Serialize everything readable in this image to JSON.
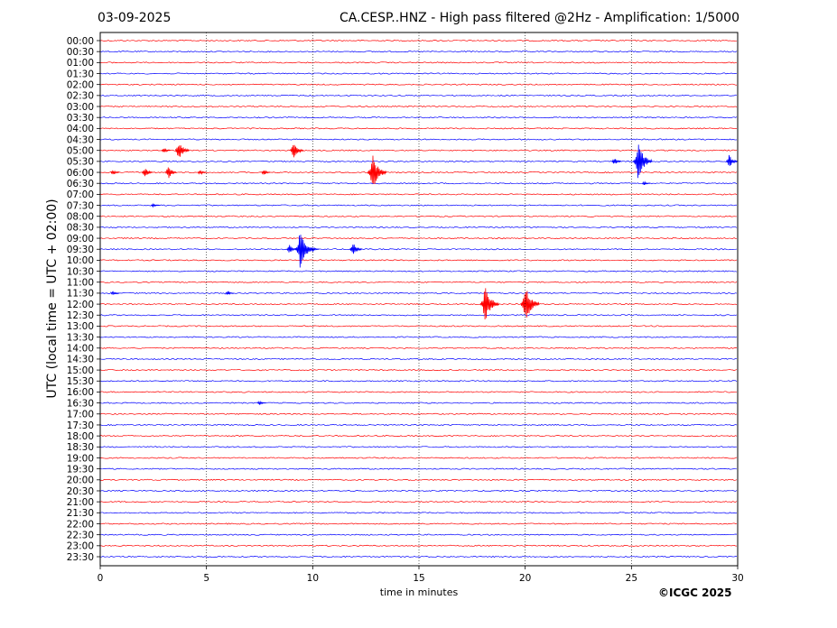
{
  "header": {
    "date": "03-09-2025",
    "title": "CA.CESP..HNZ - High pass filtered @2Hz - Amplification: 1/5000"
  },
  "footer": {
    "credit": "©ICGC 2025"
  },
  "chart_data": {
    "type": "line",
    "ylabel": "UTC (local time = UTC + 02:00)",
    "xlabel": "time in minutes",
    "xlim": [
      0,
      30
    ],
    "x_ticks": [
      0,
      5,
      10,
      15,
      20,
      25,
      30
    ],
    "x_gridlines": [
      5,
      10,
      15,
      20,
      25
    ],
    "trace_colors": [
      "#ff0000",
      "#0000ff"
    ],
    "rows": [
      "00:00",
      "00:30",
      "01:00",
      "01:30",
      "02:00",
      "02:30",
      "03:00",
      "03:30",
      "04:00",
      "04:30",
      "05:00",
      "05:30",
      "06:00",
      "06:30",
      "07:00",
      "07:30",
      "08:00",
      "08:30",
      "09:00",
      "09:30",
      "10:00",
      "10:30",
      "11:00",
      "11:30",
      "12:00",
      "12:30",
      "13:00",
      "13:30",
      "14:00",
      "14:30",
      "15:00",
      "15:30",
      "16:00",
      "16:30",
      "17:00",
      "17:30",
      "18:00",
      "18:30",
      "19:00",
      "19:30",
      "20:00",
      "20:30",
      "21:00",
      "21:30",
      "22:00",
      "22:30",
      "23:00",
      "23:30"
    ],
    "events": [
      {
        "row": "05:00",
        "minute": 3.0,
        "amplitude": 0.15
      },
      {
        "row": "05:00",
        "minute": 3.7,
        "amplitude": 0.55
      },
      {
        "row": "05:00",
        "minute": 9.1,
        "amplitude": 0.5
      },
      {
        "row": "05:30",
        "minute": 24.2,
        "amplitude": 0.2
      },
      {
        "row": "05:30",
        "minute": 25.3,
        "amplitude": 1.0
      },
      {
        "row": "05:30",
        "minute": 29.6,
        "amplitude": 0.35
      },
      {
        "row": "06:00",
        "minute": 0.6,
        "amplitude": 0.15
      },
      {
        "row": "06:00",
        "minute": 2.1,
        "amplitude": 0.3
      },
      {
        "row": "06:00",
        "minute": 3.2,
        "amplitude": 0.35
      },
      {
        "row": "06:00",
        "minute": 4.7,
        "amplitude": 0.15
      },
      {
        "row": "06:00",
        "minute": 7.7,
        "amplitude": 0.15
      },
      {
        "row": "06:00",
        "minute": 12.8,
        "amplitude": 1.0
      },
      {
        "row": "06:30",
        "minute": 25.6,
        "amplitude": 0.1
      },
      {
        "row": "07:30",
        "minute": 2.5,
        "amplitude": 0.1
      },
      {
        "row": "09:30",
        "minute": 8.9,
        "amplitude": 0.25
      },
      {
        "row": "09:30",
        "minute": 9.4,
        "amplitude": 1.0
      },
      {
        "row": "09:30",
        "minute": 10.0,
        "amplitude": 0.15
      },
      {
        "row": "09:30",
        "minute": 11.9,
        "amplitude": 0.4
      },
      {
        "row": "11:30",
        "minute": 0.6,
        "amplitude": 0.1
      },
      {
        "row": "11:30",
        "minute": 6.0,
        "amplitude": 0.1
      },
      {
        "row": "12:00",
        "minute": 18.1,
        "amplitude": 1.0
      },
      {
        "row": "12:00",
        "minute": 20.0,
        "amplitude": 1.0
      },
      {
        "row": "16:30",
        "minute": 7.5,
        "amplitude": 0.1
      }
    ]
  }
}
